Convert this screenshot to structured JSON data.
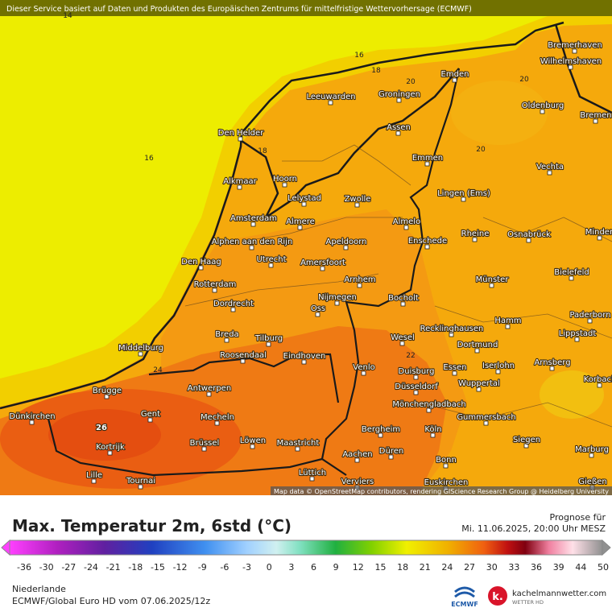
{
  "banner": "Dieser Service basiert auf Daten und Produkten des Europäischen Zentrums für mittelfristige Wettervorhersage (ECMWF)",
  "map": {
    "contour_labels": [
      14,
      16,
      16,
      18,
      18,
      20,
      20,
      20,
      22,
      24,
      26
    ],
    "cities": [
      "Bremerhaven",
      "Wilhelmshaven",
      "Emden",
      "Leeuwarden",
      "Groningen",
      "Oldenburg",
      "Bremen",
      "Den Helder",
      "Assen",
      "Emmen",
      "Vechta",
      "Lingen (Ems)",
      "Alkmaar",
      "Hoorn",
      "Lelystad",
      "Zwolle",
      "Amsterdam",
      "Almere",
      "Almelo",
      "Rheine",
      "Osnabrück",
      "Minden",
      "Alphen aan den Rijn",
      "Apeldoorn",
      "Enschede",
      "Utrecht",
      "Amersfoort",
      "Den Haag",
      "Bielefeld",
      "Arnhem",
      "Münster",
      "Rotterdam",
      "Nijmegen",
      "Bocholt",
      "Dordrecht",
      "Oss",
      "Hamm",
      "Paderborn",
      "Breda",
      "Tilburg",
      "Recklinghausen",
      "Wesel",
      "Lippstadt",
      "Middelburg",
      "Roosendaal",
      "Eindhoven",
      "Dortmund",
      "Arnsberg",
      "Venlo",
      "Duisburg",
      "Essen",
      "Iserlohn",
      "Korbach",
      "Brügge",
      "Antwerpen",
      "Wuppertal",
      "Düsseldorf",
      "Mönchengladbach",
      "Dünkirchen",
      "Gent",
      "Mecheln",
      "Gummersbach",
      "Bergheim",
      "Köln",
      "Kortrijk",
      "Brüssel",
      "Löwen",
      "Maastricht",
      "Siegen",
      "Düren",
      "Marburg",
      "Aachen",
      "Bonn",
      "Lille",
      "Tournai",
      "Lüttich",
      "Verviers",
      "Euskirchen",
      "Gießen"
    ],
    "attribution": "Map data © OpenStreetMap contributors, rendering GIScience Research Group @ Heidelberg University"
  },
  "legend": {
    "title": "Max. Temperatur 2m, 6std (°C)",
    "forecast_label": "Prognose für",
    "forecast_time": "Mi. 11.06.2025, 20:00 Uhr MESZ",
    "scale_ticks": [
      -36,
      -30,
      -27,
      -24,
      -21,
      -18,
      -15,
      -12,
      -9,
      -6,
      -3,
      0,
      3,
      6,
      9,
      12,
      15,
      18,
      21,
      24,
      27,
      30,
      33,
      36,
      39,
      44,
      50
    ]
  },
  "footer": {
    "region": "Niederlande",
    "model": "ECMWF/Global Euro HD vom  07.06.2025/12z",
    "logo_ecmwf": "ECMWF",
    "logo_mark": "k.",
    "logo_site": "kachelmannwetter.com",
    "logo_sub": "WETTER HD"
  }
}
